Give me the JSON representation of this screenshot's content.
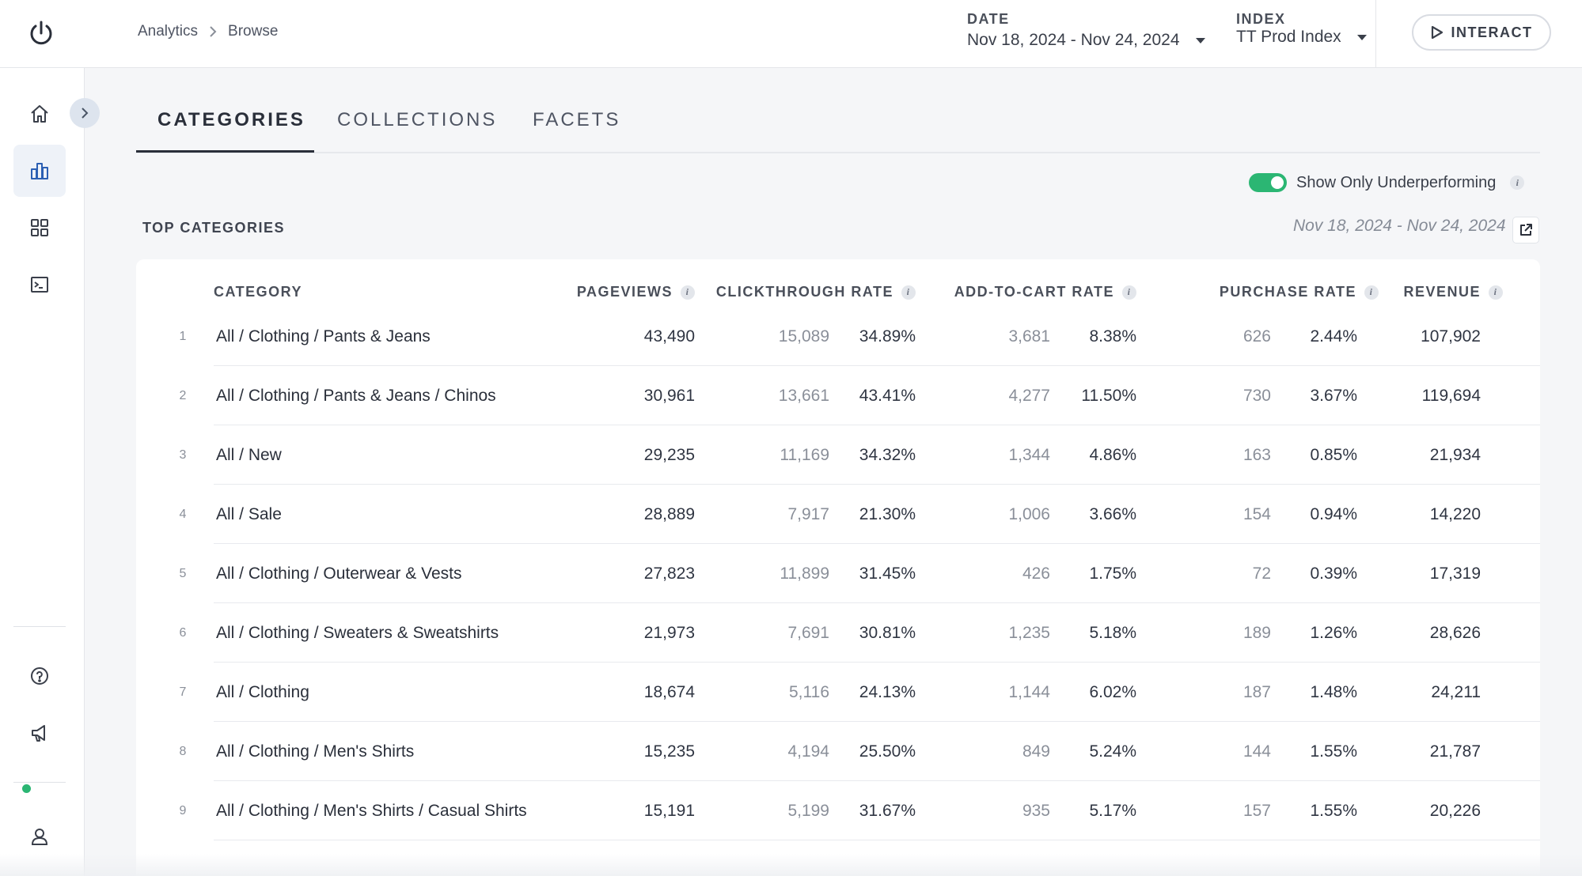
{
  "header": {
    "breadcrumb": [
      "Analytics",
      "Browse"
    ],
    "date_label": "DATE",
    "date_value": "Nov 18, 2024 - Nov 24, 2024",
    "index_label": "INDEX",
    "index_value": "TT Prod Index",
    "interact_label": "INTERACT"
  },
  "sidebar": {
    "items": [
      {
        "name": "home-icon"
      },
      {
        "name": "chart-icon",
        "active": true
      },
      {
        "name": "grid-icon"
      },
      {
        "name": "terminal-icon"
      }
    ],
    "bottom": [
      "help-icon",
      "megaphone-icon",
      "user-icon"
    ]
  },
  "tabs": [
    "CATEGORIES",
    "COLLECTIONS",
    "FACETS"
  ],
  "filters": {
    "underperforming_label": "Show Only Underperforming",
    "underperforming_on": true
  },
  "section": {
    "title": "TOP CATEGORIES",
    "date_range": "Nov 18, 2024 - Nov 24, 2024"
  },
  "table": {
    "headers": {
      "category": "CATEGORY",
      "pageviews": "PAGEVIEWS",
      "ctr": "CLICKTHROUGH RATE",
      "atc": "ADD-TO-CART RATE",
      "purchase": "PURCHASE RATE",
      "revenue": "REVENUE"
    },
    "rows": [
      {
        "n": "1",
        "category": "All / Clothing / Pants & Jeans",
        "pageviews": "43,490",
        "clicks": "15,089",
        "ctr": "34.89%",
        "atc_count": "3,681",
        "atc_rate": "8.38%",
        "purchases": "626",
        "purchase_rate": "2.44%",
        "revenue": "107,902"
      },
      {
        "n": "2",
        "category": "All / Clothing / Pants & Jeans / Chinos",
        "pageviews": "30,961",
        "clicks": "13,661",
        "ctr": "43.41%",
        "atc_count": "4,277",
        "atc_rate": "11.50%",
        "purchases": "730",
        "purchase_rate": "3.67%",
        "revenue": "119,694"
      },
      {
        "n": "3",
        "category": "All / New",
        "pageviews": "29,235",
        "clicks": "11,169",
        "ctr": "34.32%",
        "atc_count": "1,344",
        "atc_rate": "4.86%",
        "purchases": "163",
        "purchase_rate": "0.85%",
        "revenue": "21,934"
      },
      {
        "n": "4",
        "category": "All / Sale",
        "pageviews": "28,889",
        "clicks": "7,917",
        "ctr": "21.30%",
        "atc_count": "1,006",
        "atc_rate": "3.66%",
        "purchases": "154",
        "purchase_rate": "0.94%",
        "revenue": "14,220"
      },
      {
        "n": "5",
        "category": "All / Clothing / Outerwear & Vests",
        "pageviews": "27,823",
        "clicks": "11,899",
        "ctr": "31.45%",
        "atc_count": "426",
        "atc_rate": "1.75%",
        "purchases": "72",
        "purchase_rate": "0.39%",
        "revenue": "17,319"
      },
      {
        "n": "6",
        "category": "All / Clothing / Sweaters & Sweatshirts",
        "pageviews": "21,973",
        "clicks": "7,691",
        "ctr": "30.81%",
        "atc_count": "1,235",
        "atc_rate": "5.18%",
        "purchases": "189",
        "purchase_rate": "1.26%",
        "revenue": "28,626"
      },
      {
        "n": "7",
        "category": "All / Clothing",
        "pageviews": "18,674",
        "clicks": "5,116",
        "ctr": "24.13%",
        "atc_count": "1,144",
        "atc_rate": "6.02%",
        "purchases": "187",
        "purchase_rate": "1.48%",
        "revenue": "24,211"
      },
      {
        "n": "8",
        "category": "All / Clothing / Men's Shirts",
        "pageviews": "15,235",
        "clicks": "4,194",
        "ctr": "25.50%",
        "atc_count": "849",
        "atc_rate": "5.24%",
        "purchases": "144",
        "purchase_rate": "1.55%",
        "revenue": "21,787"
      },
      {
        "n": "9",
        "category": "All / Clothing / Men's Shirts / Casual Shirts",
        "pageviews": "15,191",
        "clicks": "5,199",
        "ctr": "31.67%",
        "atc_count": "935",
        "atc_rate": "5.17%",
        "purchases": "157",
        "purchase_rate": "1.55%",
        "revenue": "20,226"
      }
    ]
  }
}
